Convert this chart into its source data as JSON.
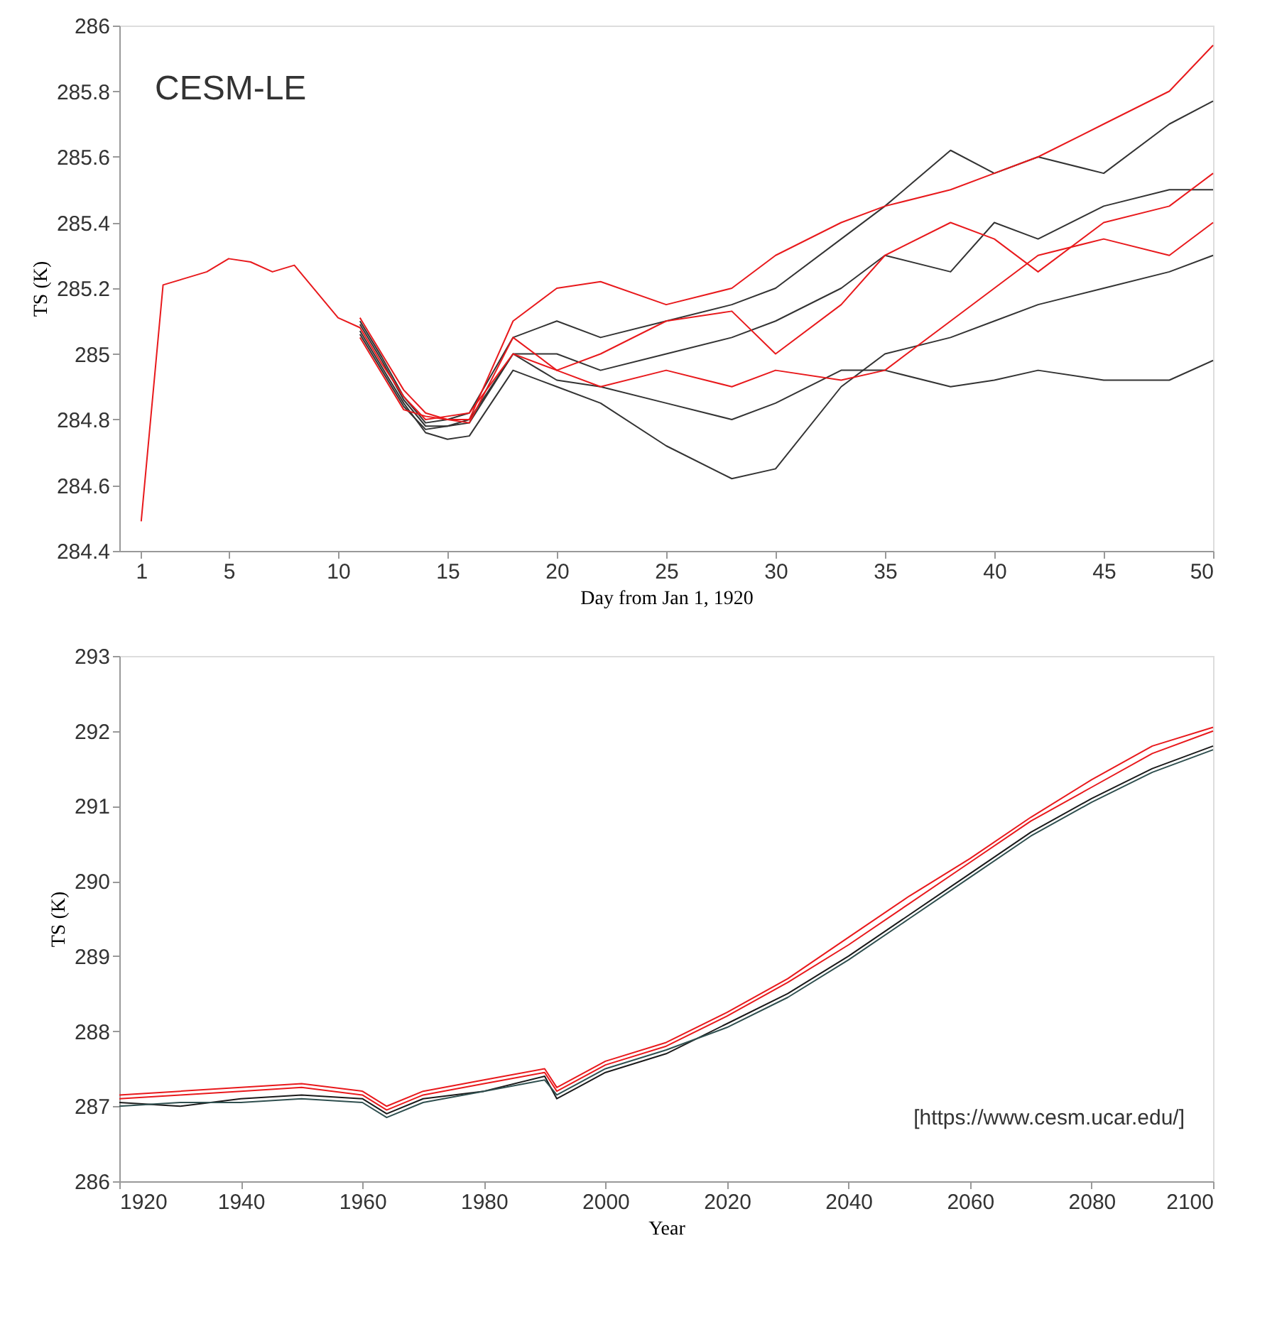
{
  "chart_data": [
    {
      "type": "line",
      "xlabel": "Day from Jan 1, 1920",
      "ylabel": "TS (K)",
      "xlim": [
        0,
        50
      ],
      "xticks": [
        1,
        5,
        10,
        15,
        20,
        25,
        30,
        35,
        40,
        45,
        50
      ],
      "ylim": [
        284.4,
        286
      ],
      "yticks": [
        284.4,
        284.6,
        284.8,
        285,
        285.2,
        285.4,
        285.6,
        285.8,
        286
      ],
      "grid": false,
      "legend": false,
      "annotations": [
        "CESM-LE"
      ],
      "x": [
        1,
        2,
        3,
        4,
        5,
        6,
        7,
        8,
        9,
        10,
        11,
        12,
        13,
        14,
        15,
        16,
        18,
        20,
        22,
        25,
        28,
        30,
        33,
        35,
        38,
        40,
        42,
        45,
        48,
        50
      ],
      "series": [
        {
          "color": "#333333",
          "values": [
            null,
            null,
            null,
            null,
            null,
            null,
            null,
            null,
            null,
            null,
            285.09,
            284.98,
            284.86,
            284.78,
            284.78,
            284.79,
            285.0,
            284.92,
            284.9,
            284.85,
            284.8,
            284.85,
            284.95,
            284.95,
            284.9,
            284.92,
            284.95,
            284.92,
            284.92,
            284.98
          ]
        },
        {
          "color": "#333333",
          "values": [
            null,
            null,
            null,
            null,
            null,
            null,
            null,
            null,
            null,
            null,
            285.07,
            284.96,
            284.85,
            284.76,
            284.74,
            284.75,
            284.95,
            284.9,
            284.85,
            284.72,
            284.62,
            284.65,
            284.9,
            285.0,
            285.05,
            285.1,
            285.15,
            285.2,
            285.25,
            285.3
          ]
        },
        {
          "color": "#333333",
          "values": [
            null,
            null,
            null,
            null,
            null,
            null,
            null,
            null,
            null,
            null,
            285.1,
            284.99,
            284.87,
            284.79,
            284.8,
            284.82,
            285.05,
            285.1,
            285.05,
            285.1,
            285.15,
            285.2,
            285.35,
            285.45,
            285.62,
            285.55,
            285.6,
            285.55,
            285.7,
            285.77
          ]
        },
        {
          "color": "#333333",
          "values": [
            null,
            null,
            null,
            null,
            null,
            null,
            null,
            null,
            null,
            null,
            285.06,
            284.95,
            284.84,
            284.77,
            284.78,
            284.8,
            285.0,
            285.0,
            284.95,
            285.0,
            285.05,
            285.1,
            285.2,
            285.3,
            285.25,
            285.4,
            285.35,
            285.45,
            285.5,
            285.5
          ]
        },
        {
          "color": "#e8191c",
          "values": [
            null,
            null,
            null,
            null,
            null,
            null,
            null,
            null,
            null,
            null,
            285.11,
            285.0,
            284.89,
            284.82,
            284.8,
            284.8,
            285.1,
            285.2,
            285.22,
            285.15,
            285.2,
            285.3,
            285.4,
            285.45,
            285.5,
            285.55,
            285.6,
            285.7,
            285.8,
            285.94
          ]
        },
        {
          "color": "#e8191c",
          "values": [
            null,
            null,
            null,
            null,
            null,
            null,
            null,
            null,
            null,
            null,
            285.05,
            284.94,
            284.83,
            284.81,
            284.8,
            284.79,
            285.05,
            284.95,
            285.0,
            285.1,
            285.13,
            285.0,
            285.15,
            285.3,
            285.4,
            285.35,
            285.25,
            285.4,
            285.45,
            285.55
          ]
        },
        {
          "color": "#e8191c",
          "values": [
            284.49,
            285.21,
            285.23,
            285.25,
            285.29,
            285.28,
            285.25,
            285.27,
            285.19,
            285.11,
            285.08,
            284.97,
            284.87,
            284.8,
            284.81,
            284.82,
            285.0,
            284.95,
            284.9,
            284.95,
            284.9,
            284.95,
            284.92,
            284.95,
            285.1,
            285.2,
            285.3,
            285.35,
            285.3,
            285.4
          ]
        }
      ]
    },
    {
      "type": "line",
      "xlabel": "Year",
      "ylabel": "TS (K)",
      "xlim": [
        1920,
        2100
      ],
      "xticks": [
        1920,
        1940,
        1960,
        1980,
        2000,
        2020,
        2040,
        2060,
        2080,
        2100
      ],
      "ylim": [
        286,
        293
      ],
      "yticks": [
        286,
        287,
        288,
        289,
        290,
        291,
        292,
        293
      ],
      "grid": false,
      "legend": false,
      "annotations": [
        "[https://www.cesm.ucar.edu/]"
      ],
      "x": [
        1920,
        1930,
        1940,
        1950,
        1960,
        1964,
        1970,
        1980,
        1990,
        1992,
        2000,
        2010,
        2020,
        2030,
        2040,
        2050,
        2060,
        2070,
        2080,
        2090,
        2100
      ],
      "series": [
        {
          "color": "#1a1a1a",
          "values": [
            287.05,
            287.0,
            287.1,
            287.15,
            287.1,
            286.9,
            287.1,
            287.2,
            287.4,
            287.1,
            287.45,
            287.7,
            288.1,
            288.5,
            289.0,
            289.55,
            290.1,
            290.65,
            291.1,
            291.5,
            291.8
          ]
        },
        {
          "color": "#2f4f4f",
          "values": [
            287.0,
            287.05,
            287.05,
            287.1,
            287.05,
            286.85,
            287.05,
            287.2,
            287.35,
            287.15,
            287.5,
            287.75,
            288.05,
            288.45,
            288.95,
            289.5,
            290.05,
            290.6,
            291.05,
            291.45,
            291.75
          ]
        },
        {
          "color": "#e8191c",
          "values": [
            287.15,
            287.2,
            287.25,
            287.3,
            287.2,
            287.0,
            287.2,
            287.35,
            287.5,
            287.25,
            287.6,
            287.85,
            288.25,
            288.7,
            289.25,
            289.8,
            290.3,
            290.85,
            291.35,
            291.8,
            292.05
          ]
        },
        {
          "color": "#e8191c",
          "values": [
            287.1,
            287.15,
            287.2,
            287.25,
            287.15,
            286.95,
            287.15,
            287.3,
            287.45,
            287.2,
            287.55,
            287.8,
            288.2,
            288.65,
            289.15,
            289.7,
            290.25,
            290.8,
            291.25,
            291.7,
            292.0
          ]
        }
      ]
    }
  ]
}
